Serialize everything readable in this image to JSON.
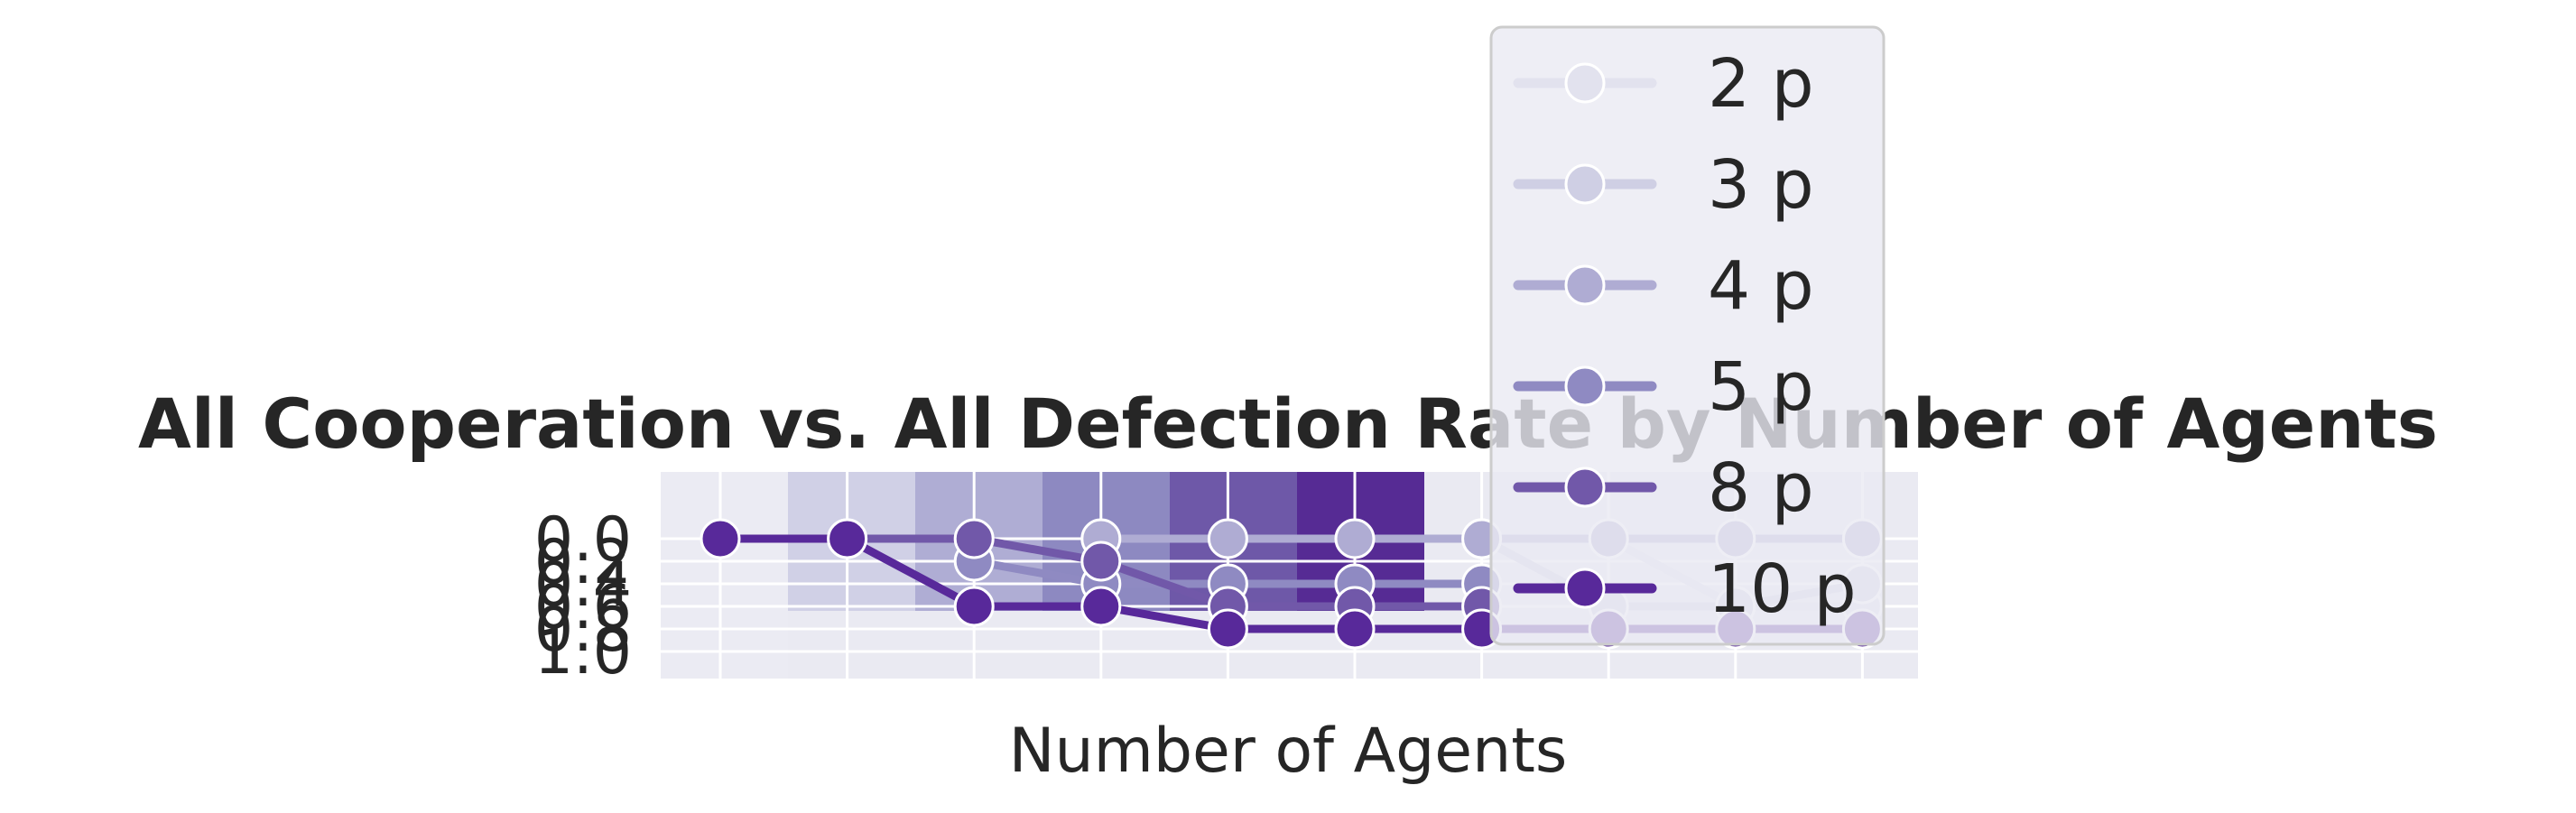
{
  "chart_data": {
    "type": "line",
    "title": "All Cooperation vs. All Defection Rate by Number of Agents",
    "xlabel": "Number of Agents",
    "ylabel": "",
    "ylim": [
      1.0,
      0.0
    ],
    "y_inverted": true,
    "yticks": [
      "0.0",
      "0.2",
      "0.4",
      "0.6",
      "0.8",
      "1.0"
    ],
    "grid": true,
    "legend_position": "upper-right",
    "x_count": 10,
    "bars": {
      "color_scale": [
        "#ebebf3",
        "#d0d0e6",
        "#afadd4",
        "#8d89c1",
        "#6e58a8",
        "#562b94"
      ],
      "values": [
        0.0,
        0.5,
        0.5,
        0.5,
        0.5,
        0.5
      ]
    },
    "series": [
      {
        "name": "2 p",
        "color": "#e2e2ee",
        "values": [
          null,
          null,
          null,
          null,
          null,
          null,
          null,
          0.0,
          0.6,
          0.6
        ]
      },
      {
        "name": "3 p",
        "color": "#cfcfe4",
        "values": [
          null,
          null,
          null,
          null,
          null,
          null,
          0.0,
          0.6,
          0.6,
          0.4
        ]
      },
      {
        "name": "4 p",
        "color": "#afacd3",
        "values": [
          null,
          null,
          null,
          0.0,
          0.0,
          0.0,
          0.0,
          0.0,
          0.0,
          0.0
        ]
      },
      {
        "name": "5 p",
        "color": "#8f8ac2",
        "values": [
          null,
          null,
          0.2,
          0.4,
          0.4,
          0.4,
          0.4,
          null,
          null,
          null
        ]
      },
      {
        "name": "8 p",
        "color": "#7158a9",
        "values": [
          null,
          0.0,
          0.0,
          0.2,
          0.6,
          0.6,
          0.6,
          null,
          null,
          null
        ]
      },
      {
        "name": "10 p",
        "color": "#58299a",
        "values": [
          0.0,
          0.0,
          0.6,
          0.6,
          0.8,
          0.8,
          0.8,
          0.8,
          0.8,
          0.8
        ]
      }
    ]
  }
}
